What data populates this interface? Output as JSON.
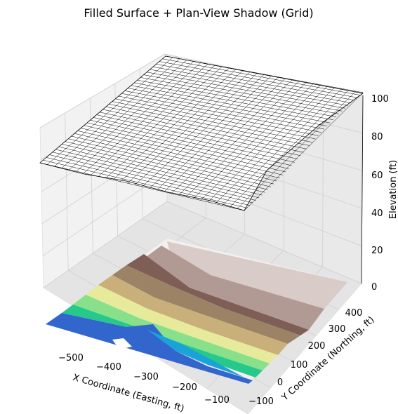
{
  "chart_data": {
    "type": "surface3d",
    "title": "Filled Surface + Plan-View Shadow (Grid)",
    "xlabel": "X Coordinate (Easting, ft)",
    "ylabel": "Y Coordinate (Northing, ft)",
    "zlabel": "Elevation (ft)",
    "xlim": [
      -580,
      -40
    ],
    "ylim": [
      -110,
      470
    ],
    "zlim": [
      0,
      100
    ],
    "x_ticks": [
      "−500",
      "−400",
      "−300",
      "−200",
      "−100"
    ],
    "y_ticks": [
      "−100",
      "0",
      "100",
      "200",
      "300",
      "400"
    ],
    "z_ticks": [
      "0",
      "20",
      "40",
      "60",
      "80",
      "100"
    ],
    "surface_style": "white faces with black wireframe grid",
    "shadow_style": "filled contour plan view at z=0, terrain colormap",
    "colormap": [
      "#3366cc",
      "#1aa3d9",
      "#26c98b",
      "#88e08a",
      "#e6ea9a",
      "#c9b07a",
      "#9c8366",
      "#7f5f55",
      "#b29a94",
      "#d9cbc8",
      "#f3f0ef"
    ],
    "grid": true
  }
}
